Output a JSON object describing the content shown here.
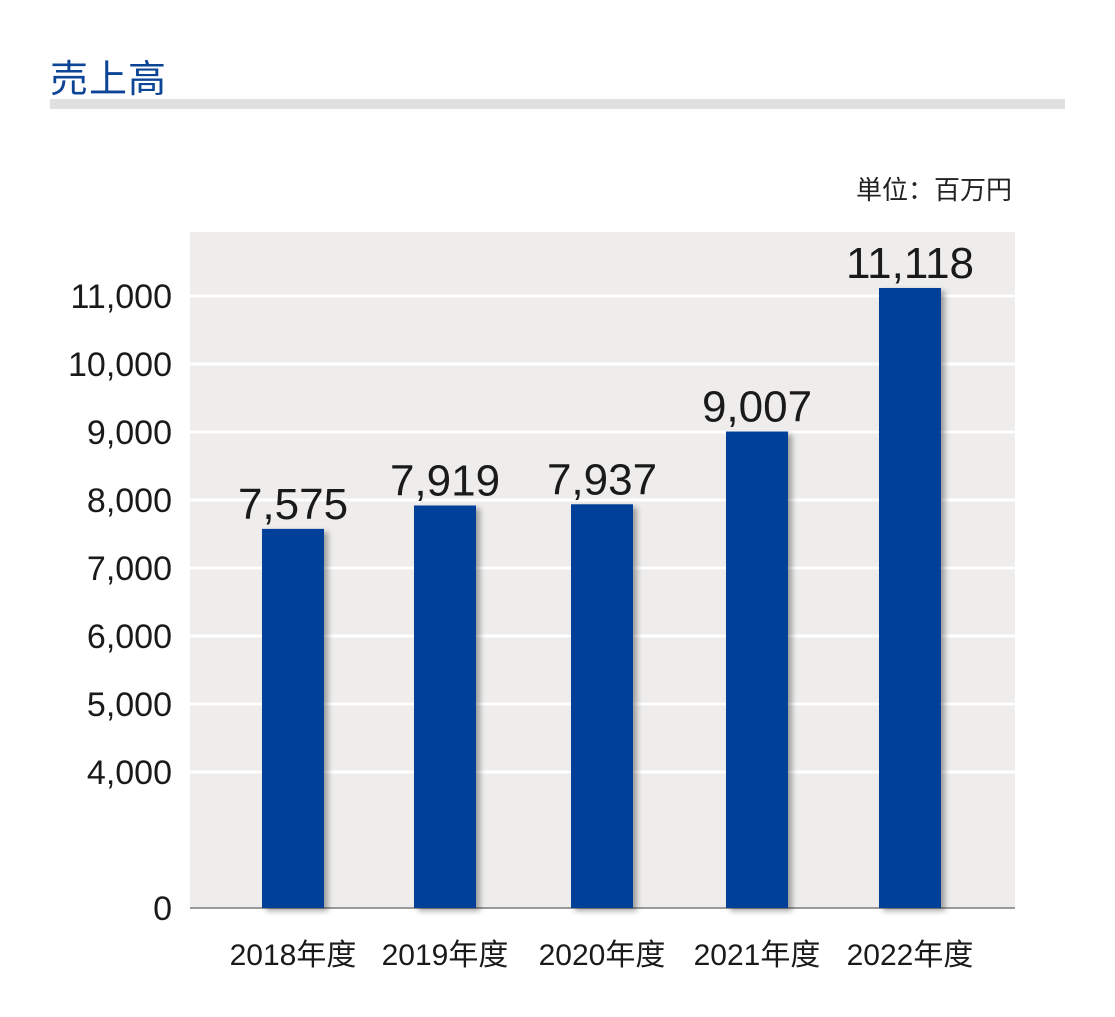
{
  "header": {
    "title": "売上高"
  },
  "unit_label": "単位：百万円",
  "colors": {
    "title": "#0d4596",
    "bar": "#003f98",
    "plot_bg": "#eeedec",
    "rule": "#e0e0e0"
  },
  "chart_data": {
    "type": "bar",
    "title": "売上高",
    "categories": [
      "2018年度",
      "2019年度",
      "2020年度",
      "2021年度",
      "2022年度"
    ],
    "values": [
      7575,
      7919,
      7937,
      9007,
      11118
    ],
    "value_labels": [
      "7,575",
      "7,919",
      "7,937",
      "9,007",
      "11,118"
    ],
    "y_ticks": [
      0,
      4000,
      5000,
      6000,
      7000,
      8000,
      9000,
      10000,
      11000
    ],
    "y_tick_labels": [
      "0",
      "4,000",
      "5,000",
      "6,000",
      "7,000",
      "8,000",
      "9,000",
      "10,000",
      "11,000"
    ],
    "y_axis_break": [
      0,
      4000
    ],
    "ylim": [
      0,
      11500
    ],
    "xlabel": "",
    "ylabel": "",
    "grid": true,
    "legend": "none"
  }
}
